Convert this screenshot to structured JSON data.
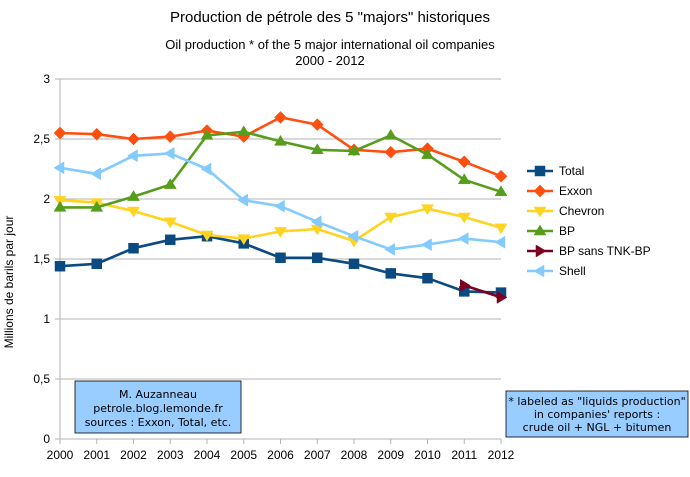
{
  "chart_data": {
    "type": "line",
    "title": "Production de pétrole des 5 \"majors\" historiques",
    "subtitle_line1": "Oil production * of the 5 major international oil companies",
    "subtitle_line2": "2000 - 2012",
    "ylabel": "Millions de barils par jour",
    "xlabel": "",
    "ylim": [
      0,
      3
    ],
    "yticks": [
      0,
      0.5,
      1,
      1.5,
      2,
      2.5,
      3
    ],
    "ytick_labels": [
      "0",
      "0,5",
      "1",
      "1,5",
      "2",
      "2,5",
      "3"
    ],
    "categories": [
      "2000",
      "2001",
      "2002",
      "2003",
      "2004",
      "2005",
      "2006",
      "2007",
      "2008",
      "2009",
      "2010",
      "2011",
      "2012"
    ],
    "grid": "horizontal",
    "legend_position": "right",
    "series": [
      {
        "name": "Total",
        "color": "#0b4a80",
        "marker": "square",
        "values": [
          1.44,
          1.46,
          1.59,
          1.66,
          1.69,
          1.63,
          1.51,
          1.51,
          1.46,
          1.38,
          1.34,
          1.23,
          1.22
        ]
      },
      {
        "name": "Exxon",
        "color": "#ff4f0f",
        "marker": "diamond",
        "values": [
          2.55,
          2.54,
          2.5,
          2.52,
          2.57,
          2.52,
          2.68,
          2.62,
          2.41,
          2.39,
          2.42,
          2.31,
          2.19
        ]
      },
      {
        "name": "Chevron",
        "color": "#ffd320",
        "marker": "triangle-down",
        "values": [
          1.99,
          1.97,
          1.9,
          1.81,
          1.7,
          1.67,
          1.73,
          1.75,
          1.65,
          1.85,
          1.92,
          1.85,
          1.76
        ]
      },
      {
        "name": "BP",
        "color": "#579d1c",
        "marker": "triangle-up",
        "values": [
          1.93,
          1.93,
          2.02,
          2.12,
          2.53,
          2.56,
          2.48,
          2.41,
          2.4,
          2.53,
          2.37,
          2.16,
          2.06
        ]
      },
      {
        "name": "BP sans TNK-BP",
        "color": "#7e0021",
        "marker": "triangle-right",
        "values": [
          null,
          null,
          null,
          null,
          null,
          null,
          null,
          null,
          null,
          null,
          null,
          1.28,
          1.18
        ]
      },
      {
        "name": "Shell",
        "color": "#83caff",
        "marker": "triangle-left",
        "values": [
          2.26,
          2.21,
          2.36,
          2.38,
          2.25,
          1.99,
          1.94,
          1.81,
          1.69,
          1.58,
          1.62,
          1.67,
          1.64
        ]
      }
    ],
    "annotations": {
      "credit": [
        "M. Auzanneau",
        "petrole.blog.lemonde.fr",
        "sources : Exxon, Total, etc."
      ],
      "footnote": [
        "* labeled as \"liquids production\"",
        "in companies' reports :",
        "crude oil + NGL + bitumen"
      ]
    }
  },
  "colors": {
    "box_fill": "#99ccff",
    "grid": "#b3b3b3",
    "axis": "#b3b3b3"
  }
}
